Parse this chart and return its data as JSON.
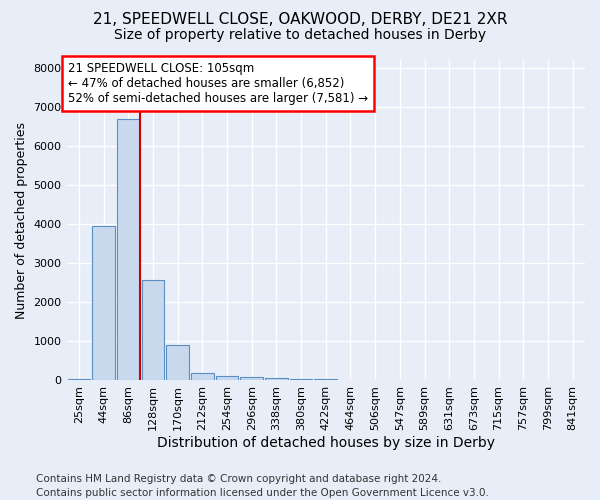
{
  "title_line1": "21, SPEEDWELL CLOSE, OAKWOOD, DERBY, DE21 2XR",
  "title_line2": "Size of property relative to detached houses in Derby",
  "xlabel": "Distribution of detached houses by size in Derby",
  "ylabel": "Number of detached properties",
  "footnote": "Contains HM Land Registry data © Crown copyright and database right 2024.\nContains public sector information licensed under the Open Government Licence v3.0.",
  "bar_labels": [
    "25sqm",
    "44sqm",
    "86sqm",
    "128sqm",
    "170sqm",
    "212sqm",
    "254sqm",
    "296sqm",
    "338sqm",
    "380sqm",
    "422sqm",
    "464sqm",
    "506sqm",
    "547sqm",
    "589sqm",
    "631sqm",
    "673sqm",
    "715sqm",
    "757sqm",
    "799sqm",
    "841sqm"
  ],
  "bar_values": [
    25,
    3950,
    6680,
    2580,
    900,
    185,
    110,
    95,
    55,
    45,
    25,
    18,
    10,
    5,
    4,
    3,
    2,
    2,
    1,
    1,
    1
  ],
  "bar_color": "#c8d9ee",
  "bar_edge_color": "#5a8fc4",
  "vline_bar_index": 2,
  "vline_color": "#cc0000",
  "annotation_text": "21 SPEEDWELL CLOSE: 105sqm\n← 47% of detached houses are smaller (6,852)\n52% of semi-detached houses are larger (7,581) →",
  "ylim": [
    0,
    8200
  ],
  "yticks": [
    0,
    1000,
    2000,
    3000,
    4000,
    5000,
    6000,
    7000,
    8000
  ],
  "bg_color": "#e8eef8",
  "plot_bg_color": "#e8eef8",
  "grid_color": "#ffffff",
  "title_fontsize": 11,
  "subtitle_fontsize": 10,
  "xlabel_fontsize": 10,
  "ylabel_fontsize": 9,
  "tick_fontsize": 8,
  "footnote_fontsize": 7.5,
  "annotation_fontsize": 8.5
}
